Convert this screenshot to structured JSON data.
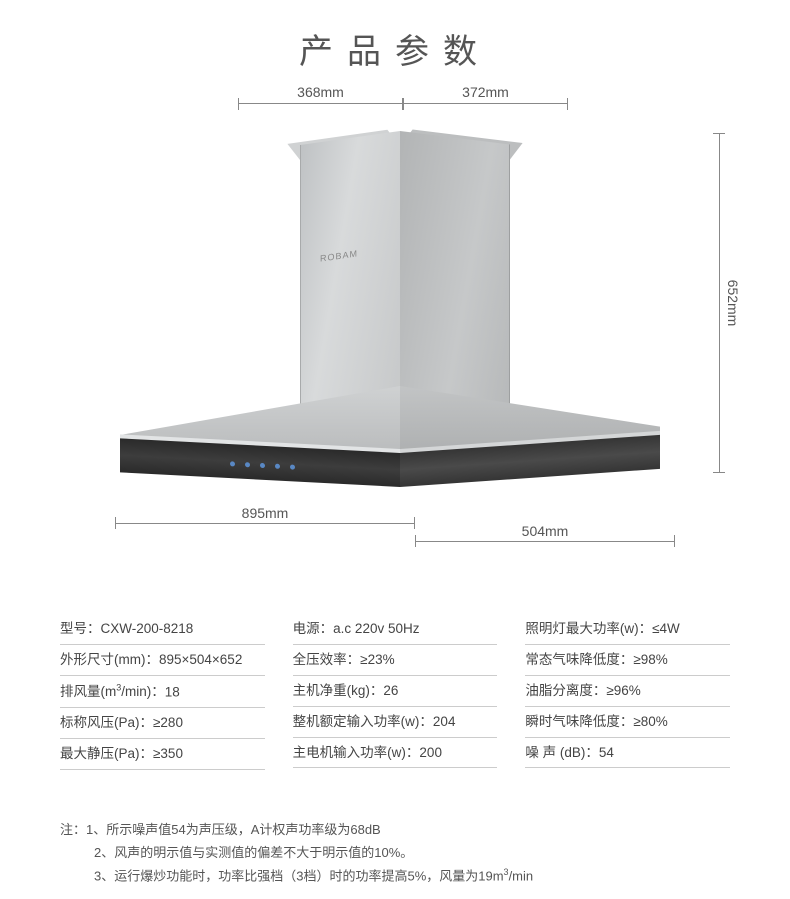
{
  "title": "产品参数",
  "brand": "ROBAM",
  "dimensions": {
    "top_left": "368mm",
    "top_right": "372mm",
    "height": "652mm",
    "bottom_front": "895mm",
    "bottom_side": "504mm"
  },
  "colors": {
    "text": "#444444",
    "rule": "#cccccc",
    "dim_line": "#888888",
    "steel_light": "#d8dadb",
    "steel_dark": "#b2b4b5",
    "base_dark": "#2a2a2a"
  },
  "spec_columns": [
    [
      {
        "label": "型号：",
        "value": "CXW-200-8218"
      },
      {
        "label": "外形尺寸(mm)：",
        "value": "895×504×652"
      },
      {
        "label": "排风量(m³/min)：",
        "value": "18"
      },
      {
        "label": "标称风压(Pa)：",
        "value": "≥280"
      },
      {
        "label": "最大静压(Pa)：",
        "value": "≥350"
      }
    ],
    [
      {
        "label": "电源：",
        "value": "a.c 220v 50Hz"
      },
      {
        "label": "全压效率：",
        "value": "≥23%"
      },
      {
        "label": "主机净重(kg)：",
        "value": "26"
      },
      {
        "label": "整机额定输入功率(w)：",
        "value": "204"
      },
      {
        "label": "主电机输入功率(w)：",
        "value": "200"
      }
    ],
    [
      {
        "label": "照明灯最大功率(w)：",
        "value": "≤4W"
      },
      {
        "label": "常态气味降低度：",
        "value": "≥98%"
      },
      {
        "label": "油脂分离度：",
        "value": "≥96%"
      },
      {
        "label": "瞬时气味降低度：",
        "value": "≥80%"
      },
      {
        "label": "噪 声 (dB)：",
        "value": "54"
      }
    ]
  ],
  "notes_prefix": "注：",
  "notes": [
    "1、所示噪声值54为声压级，A计权声功率级为68dB",
    "2、风声的明示值与实测值的偏差不大于明示值的10%。",
    "3、运行爆炒功能时，功率比强档（3档）时的功率提高5%，风量为19m³/min"
  ]
}
